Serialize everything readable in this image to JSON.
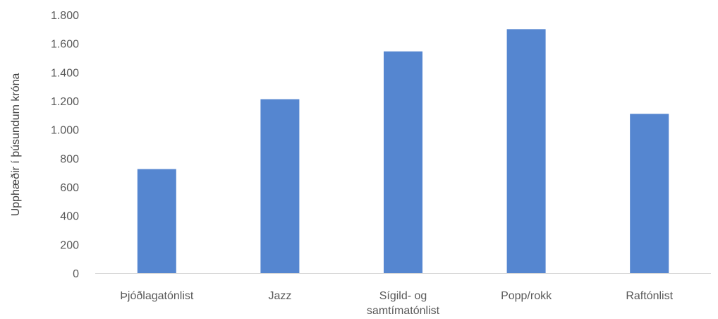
{
  "chart_data": {
    "type": "bar",
    "title": "",
    "xlabel": "",
    "ylabel": "Upphæðir í þúsundum króna",
    "categories": [
      [
        "Þjóðlagatónlist"
      ],
      [
        "Jazz"
      ],
      [
        "Sígild- og",
        "samtímatónlist"
      ],
      [
        "Popp/rokk"
      ],
      [
        "Raftónlist"
      ]
    ],
    "values": [
      725,
      1212,
      1545,
      1700,
      1110
    ],
    "ylim": [
      0,
      1800
    ],
    "yticks": [
      0,
      200,
      400,
      600,
      800,
      1000,
      1200,
      1400,
      1600,
      1800
    ],
    "ytick_labels": [
      "0",
      "200",
      "400",
      "600",
      "800",
      "1.000",
      "1.200",
      "1.400",
      "1.600",
      "1.800"
    ],
    "grid": false,
    "bar_color": "#5586d0",
    "axis_color": "#d9d9d9"
  }
}
